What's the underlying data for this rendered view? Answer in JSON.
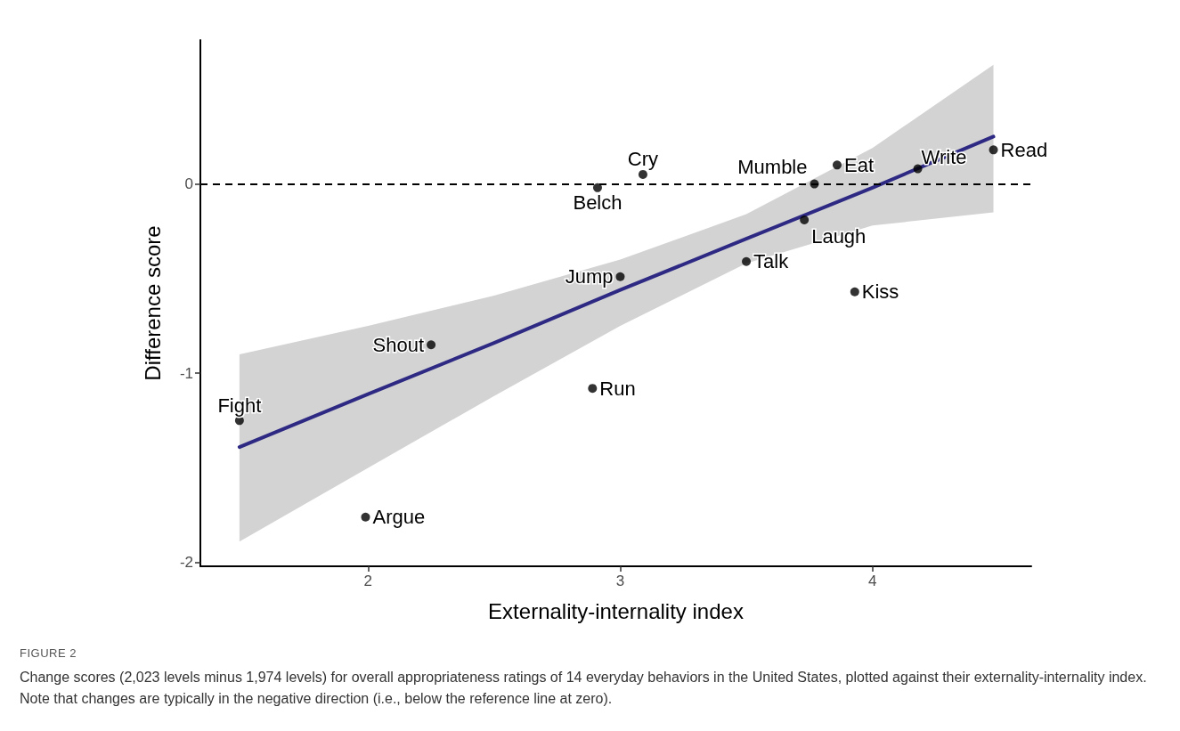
{
  "chart_data": {
    "type": "scatter",
    "xlabel": "Externality-internality index",
    "ylabel": "Difference score",
    "xlim": [
      1.335,
      4.63
    ],
    "xticks": [
      2,
      3,
      4
    ],
    "ylim": [
      -2.02,
      0.76
    ],
    "yticks": [
      -2,
      -1,
      0
    ],
    "grid": false,
    "series": [
      {
        "color": "#000000",
        "marker": "circle",
        "x": [
          1.49,
          1.99,
          2.25,
          2.89,
          2.91,
          3.0,
          3.09,
          3.5,
          3.73,
          3.77,
          3.86,
          3.93,
          4.18,
          4.48
        ],
        "values": [
          -1.25,
          -1.76,
          -0.85,
          -1.08,
          -0.02,
          -0.49,
          0.05,
          -0.41,
          -0.19,
          0.0,
          0.1,
          -0.57,
          0.08,
          0.18
        ]
      },
      {
        "type": "line",
        "color": "#2e2a84",
        "marker": "none",
        "line_style": "solid",
        "x": [
          1.49,
          2.0,
          2.5,
          3.0,
          3.5,
          4.0,
          4.48
        ],
        "values": [
          -1.39,
          -1.11,
          -0.84,
          -0.56,
          -0.29,
          -0.02,
          0.25
        ],
        "lower": [
          -1.89,
          -1.5,
          -1.12,
          -0.75,
          -0.42,
          -0.22,
          -0.15
        ],
        "upper": [
          -0.9,
          -0.75,
          -0.59,
          -0.4,
          -0.16,
          0.19,
          0.63
        ]
      }
    ],
    "ref_lines": [
      {
        "axis": "y",
        "value": 0,
        "color": "#000000",
        "line_style": "dashed"
      }
    ],
    "annotations": [
      {
        "text": "Fight",
        "x": 1.49,
        "y": -1.25
      },
      {
        "text": "Argue",
        "x": 1.99,
        "y": -1.76
      },
      {
        "text": "Shout",
        "x": 2.25,
        "y": -0.85
      },
      {
        "text": "Run",
        "x": 2.89,
        "y": -1.08
      },
      {
        "text": "Belch",
        "x": 2.91,
        "y": -0.02
      },
      {
        "text": "Jump",
        "x": 3.0,
        "y": -0.49
      },
      {
        "text": "Cry",
        "x": 3.09,
        "y": 0.05
      },
      {
        "text": "Talk",
        "x": 3.5,
        "y": -0.41
      },
      {
        "text": "Laugh",
        "x": 3.73,
        "y": -0.19
      },
      {
        "text": "Mumble",
        "x": 3.77,
        "y": 0.0
      },
      {
        "text": "Eat",
        "x": 3.86,
        "y": 0.1
      },
      {
        "text": "Kiss",
        "x": 3.93,
        "y": -0.57
      },
      {
        "text": "Write",
        "x": 4.18,
        "y": 0.08
      },
      {
        "text": "Read",
        "x": 4.48,
        "y": 0.18
      },
      "FIGURE 2",
      "Change scores (2,023 levels minus 1,974 levels) for overall appropriateness ratings of 14 everyday behaviors in the United States, plotted against their externality-internality index. Note that changes are typically in the negative direction (i.e., below the reference line at zero)."
    ]
  }
}
